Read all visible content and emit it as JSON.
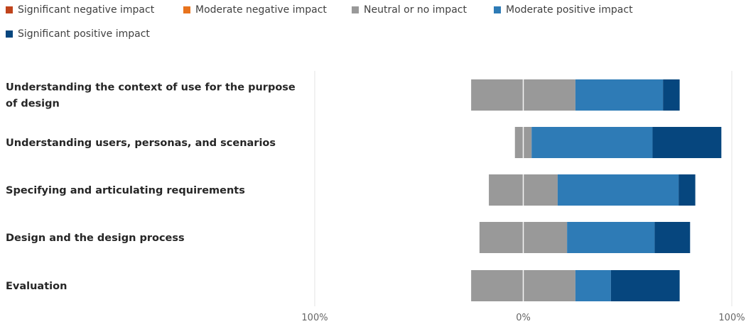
{
  "chart_data": {
    "type": "diverging-stacked-bar",
    "orientation": "horizontal",
    "title": "",
    "xlabel": "",
    "ylabel": "",
    "xlim": [
      -100,
      100
    ],
    "x_tick_labels": [
      "100%",
      "0%",
      "100%"
    ],
    "grid": true,
    "legend_position": "top",
    "categories": [
      "Understanding the context of use for the purpose of design",
      "Understanding users, personas, and scenarios",
      "Specifying and articulating requirements",
      "Design and the design process",
      "Evaluation"
    ],
    "series": [
      {
        "name": "Significant negative impact",
        "color": "#c0441c",
        "values": [
          0,
          0,
          0,
          0,
          0
        ]
      },
      {
        "name": "Moderate negative impact",
        "color": "#e8731d",
        "values": [
          0,
          0,
          0,
          0,
          0
        ]
      },
      {
        "name": "Neutral or no impact",
        "color": "#999999",
        "values": [
          50,
          8,
          33,
          42,
          50
        ]
      },
      {
        "name": "Moderate positive impact",
        "color": "#2e7bb6",
        "values": [
          42,
          58,
          58,
          42,
          17
        ]
      },
      {
        "name": "Significant positive impact",
        "color": "#06467e",
        "values": [
          8,
          33,
          8,
          17,
          33
        ]
      }
    ]
  }
}
